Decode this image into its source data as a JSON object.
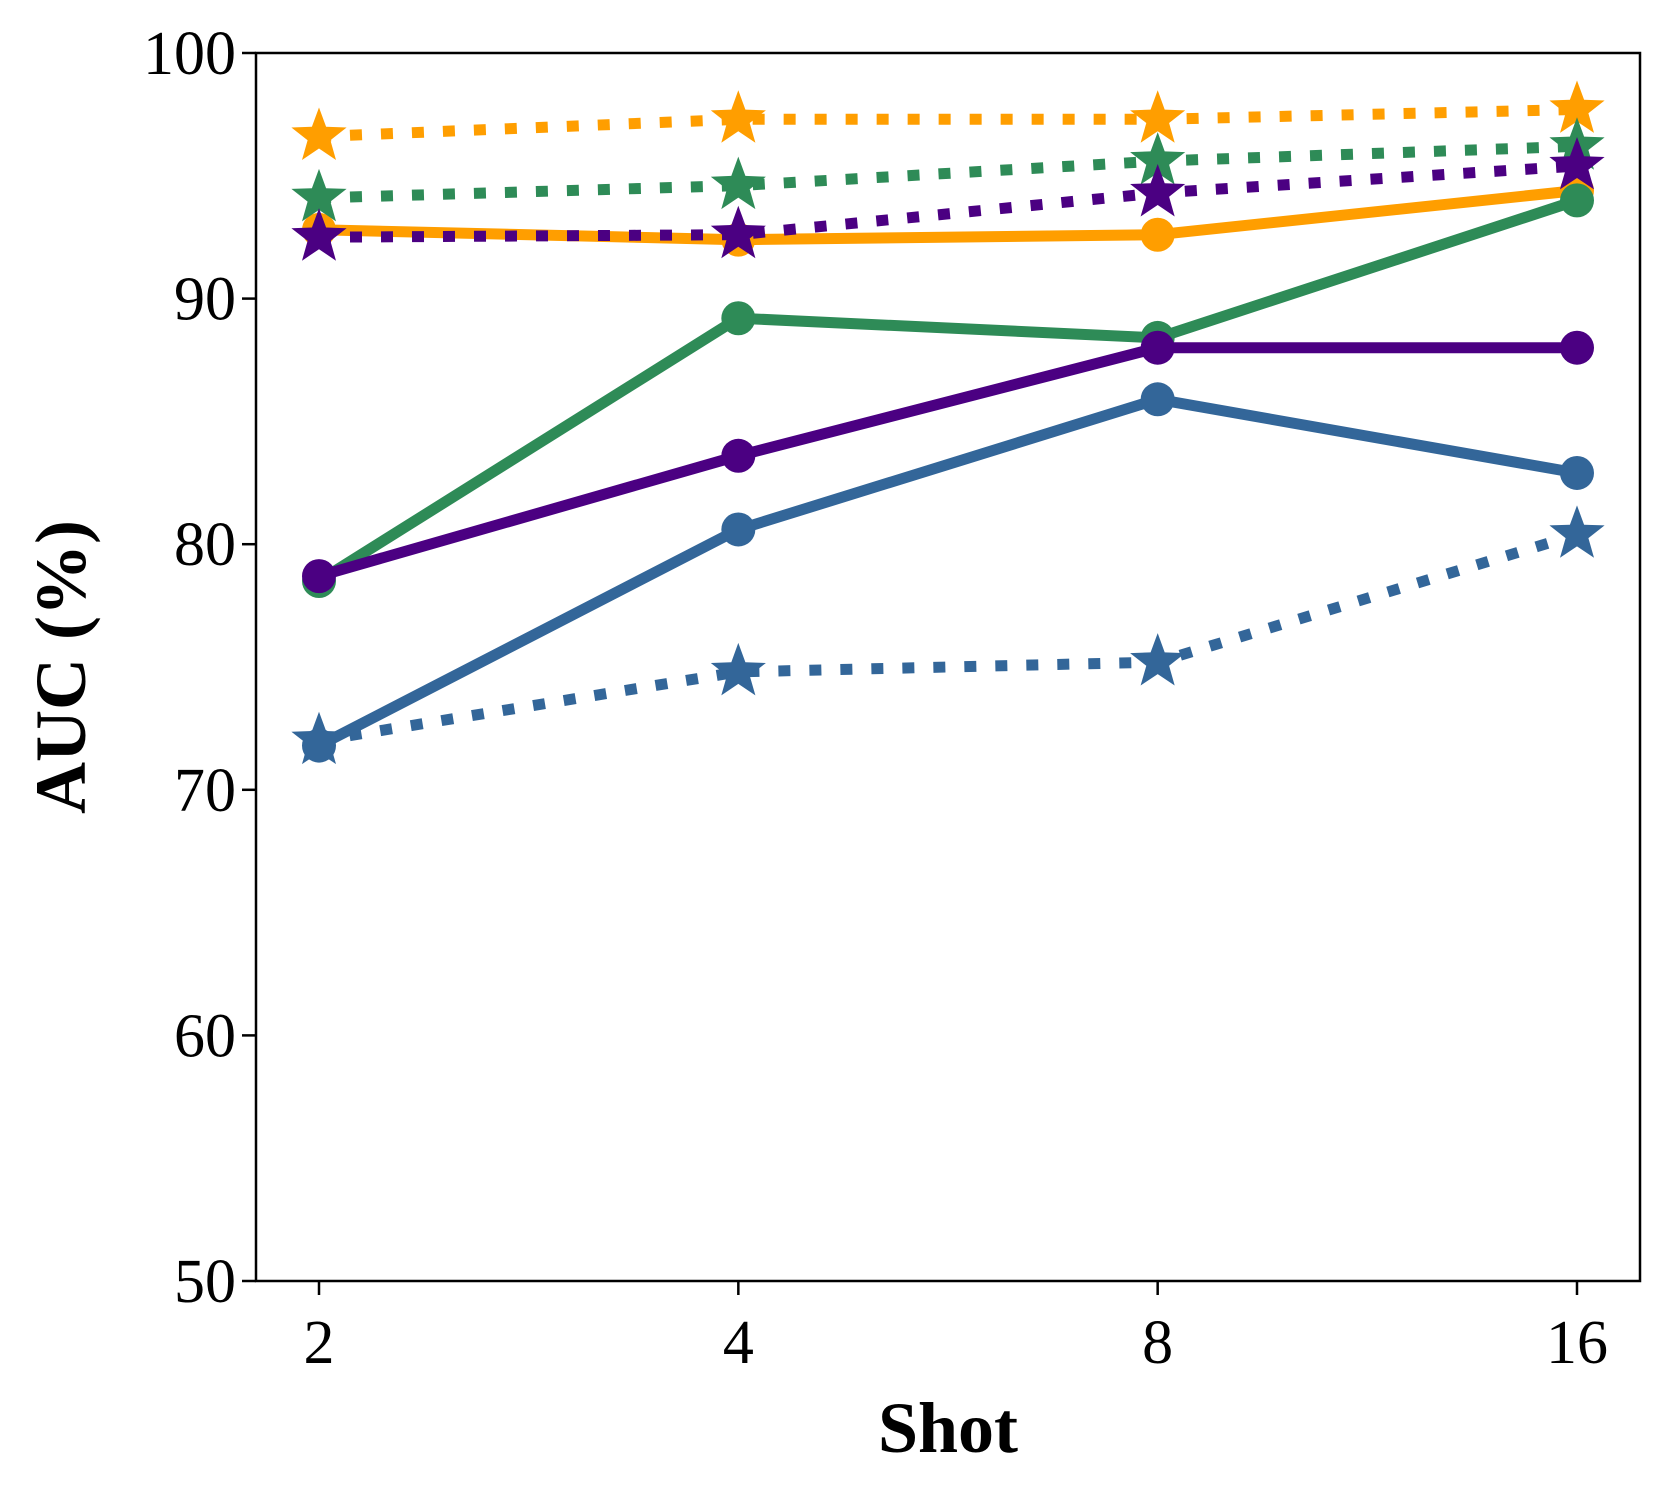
{
  "chart_data": {
    "type": "line",
    "xlabel": "Shot",
    "ylabel": "AUC (%)",
    "categories": [
      "2",
      "4",
      "8",
      "16"
    ],
    "ylim": [
      50,
      100
    ],
    "yticks": [
      "50",
      "60",
      "70",
      "80",
      "90",
      "100"
    ],
    "grid": false,
    "series": [
      {
        "color": "#ff9e00",
        "style": "solid",
        "marker": "circle",
        "values": [
          92.8,
          92.4,
          92.6,
          94.4
        ]
      },
      {
        "color": "#2e8b57",
        "style": "solid",
        "marker": "circle",
        "values": [
          78.5,
          89.2,
          88.4,
          94.0
        ]
      },
      {
        "color": "#4b0082",
        "style": "solid",
        "marker": "circle",
        "values": [
          78.7,
          83.6,
          88.0,
          88.0
        ]
      },
      {
        "color": "#336699",
        "style": "solid",
        "marker": "circle",
        "values": [
          71.8,
          80.6,
          85.9,
          82.9
        ]
      },
      {
        "color": "#ff9e00",
        "style": "dotted",
        "marker": "star",
        "values": [
          96.6,
          97.3,
          97.3,
          97.7
        ]
      },
      {
        "color": "#2e8b57",
        "style": "dotted",
        "marker": "star",
        "values": [
          94.1,
          94.6,
          95.6,
          96.2
        ]
      },
      {
        "color": "#4b0082",
        "style": "dotted",
        "marker": "star",
        "values": [
          92.5,
          92.6,
          94.3,
          95.4
        ]
      },
      {
        "color": "#336699",
        "style": "dotted",
        "marker": "star",
        "values": [
          72.0,
          74.8,
          75.2,
          80.4
        ]
      }
    ]
  }
}
